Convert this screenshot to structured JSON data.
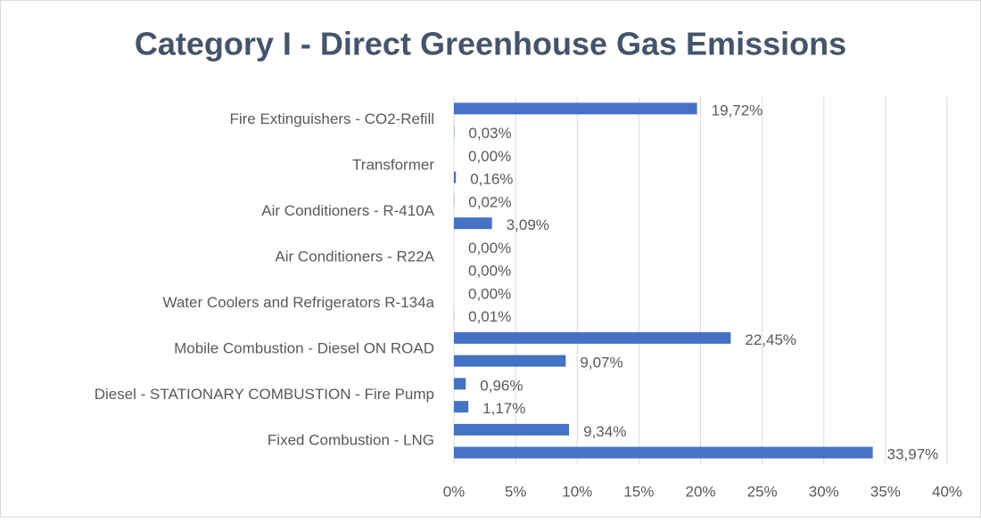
{
  "chart_data": {
    "type": "barh",
    "title": "Category I - Direct Greenhouse Gas Emissions",
    "categories": [
      "Fixed Combustion - LNG",
      null,
      "Diesel - STATIONARY COMBUSTION - Fire Pump",
      null,
      "Mobile Combustion - Diesel ON ROAD",
      null,
      "Water Coolers and Refrigerators R-134a",
      null,
      "Air Conditioners - R22A",
      null,
      "Air Conditioners - R-410A",
      null,
      "Transformer",
      null,
      "Fire Extinguishers - CO2-Refill",
      null
    ],
    "values": [
      33.97,
      9.34,
      1.17,
      0.96,
      9.07,
      22.45,
      0.01,
      0.0,
      0.0,
      0.0,
      3.09,
      0.02,
      0.16,
      0.0,
      0.03,
      19.72
    ],
    "value_labels": [
      "33,97%",
      "9,34%",
      "1,17%",
      "0,96%",
      "9,07%",
      "22,45%",
      "0,01%",
      "0,00%",
      "0,00%",
      "0,00%",
      "3,09%",
      "0,02%",
      "0,16%",
      "0,00%",
      "0,03%",
      "19,72%"
    ],
    "color": "#4472c4",
    "xlim": [
      0,
      40
    ],
    "xticks": [
      {
        "value": 0,
        "label": "0%"
      },
      {
        "value": 5,
        "label": "5%"
      },
      {
        "value": 10,
        "label": "10%"
      },
      {
        "value": 15,
        "label": "15%"
      },
      {
        "value": 20,
        "label": "20%"
      },
      {
        "value": 25,
        "label": "25%"
      },
      {
        "value": 30,
        "label": "30%"
      },
      {
        "value": 35,
        "label": "35%"
      },
      {
        "value": 40,
        "label": "40%"
      }
    ],
    "grid": true
  }
}
